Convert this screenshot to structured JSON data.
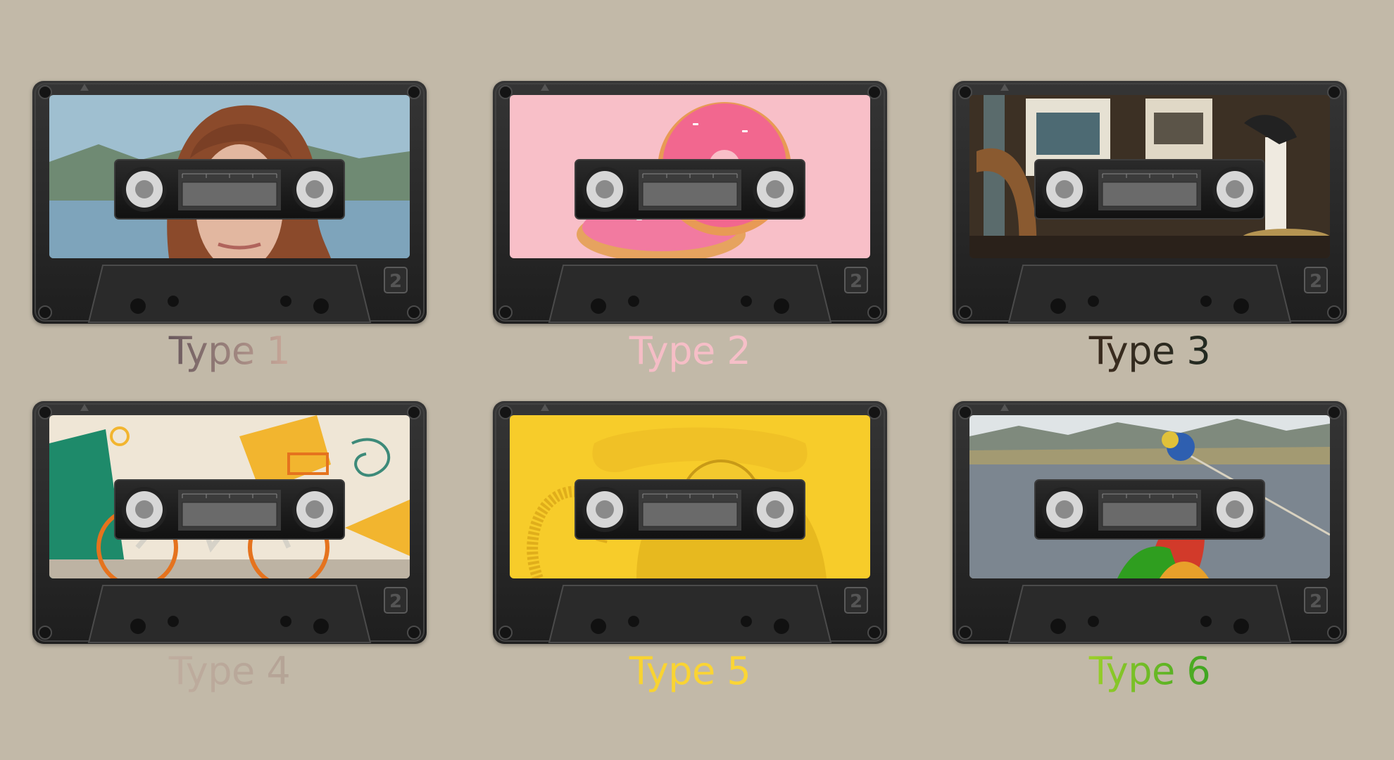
{
  "tapes": [
    {
      "label": "Type 1",
      "label_gradient": [
        "#27243a",
        "#6b5a5e",
        "#d8b5a3",
        "#e8c4b8"
      ],
      "scene": "portrait",
      "colors": {
        "bg": "#8fb1c4",
        "accent": "#9b5a3c"
      }
    },
    {
      "label": "Type 2",
      "label_gradient": [
        "#f4b9c2",
        "#f7c3cb"
      ],
      "scene": "donuts",
      "colors": {
        "bg": "#f8bfc8",
        "accent": "#f2668e"
      }
    },
    {
      "label": "Type 3",
      "label_gradient": [
        "#141414",
        "#3a2b1e",
        "#1d2a22",
        "#101010"
      ],
      "scene": "antiques",
      "colors": {
        "bg": "#4a3a2c",
        "accent": "#c9a56b"
      }
    },
    {
      "label": "Type 4",
      "label_gradient": [
        "#cbb8a8",
        "#a8988c"
      ],
      "scene": "bicycle",
      "colors": {
        "bg": "#ece2d2",
        "accent": "#f2b52f"
      }
    },
    {
      "label": "Type 5",
      "label_gradient": [
        "#f4cf2c",
        "#ffd93a"
      ],
      "scene": "telephone",
      "colors": {
        "bg": "#f7cc2a",
        "accent": "#e9b320"
      }
    },
    {
      "label": "Type 6",
      "label_gradient": [
        "#f2d21f",
        "#9bcf2a",
        "#2f9e1f",
        "#1c6a10"
      ],
      "scene": "road",
      "colors": {
        "bg": "#7a8794",
        "accent": "#d23a2a"
      }
    }
  ]
}
